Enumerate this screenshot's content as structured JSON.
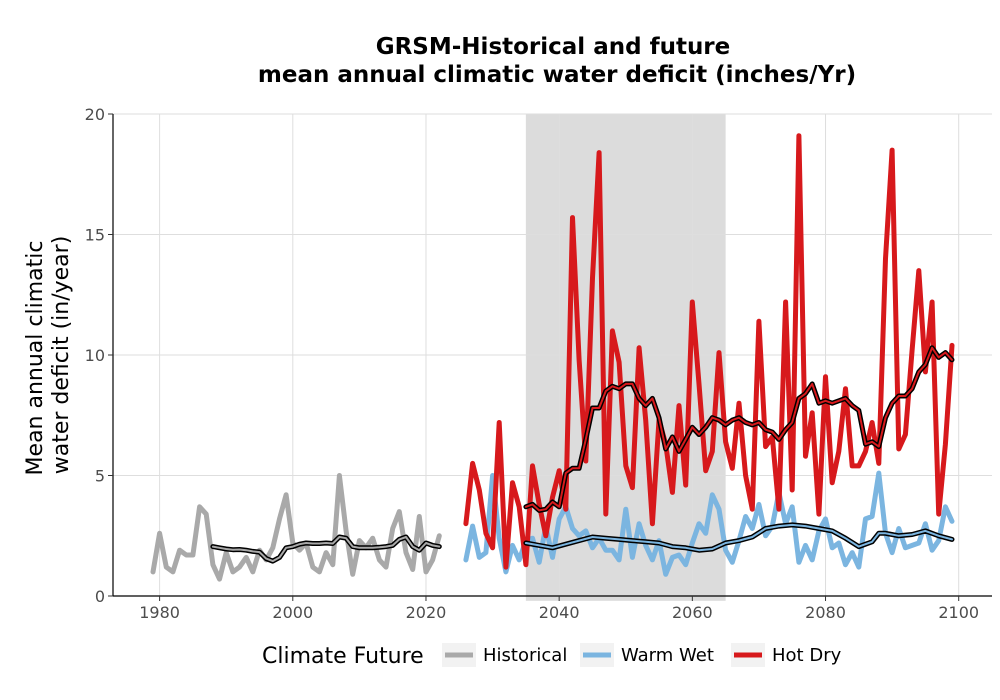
{
  "chart_data": {
    "type": "line",
    "title": [
      "GRSM-Historical and future",
      "mean annual climatic water deficit (inches/Yr)"
    ],
    "ylabel": [
      "Mean annual climatic",
      "water deficit (in/year)"
    ],
    "xlim": [
      1973,
      2105
    ],
    "ylim": [
      0,
      20
    ],
    "xticks": [
      1980,
      2000,
      2020,
      2040,
      2060,
      2080,
      2100
    ],
    "yticks": [
      0,
      5,
      10,
      15,
      20
    ],
    "grid": true,
    "shaded_period": [
      2035,
      2065
    ],
    "shaded_color": "#dcdcdc",
    "legend": {
      "title": "Climate Future",
      "position": "bottom",
      "entries": [
        "Historical",
        "Warm Wet",
        "Hot Dry"
      ]
    },
    "series": [
      {
        "name": "Historical",
        "color": "#a9a9a9",
        "x": [
          1979,
          1980,
          1981,
          1982,
          1983,
          1984,
          1985,
          1986,
          1987,
          1988,
          1989,
          1990,
          1991,
          1992,
          1993,
          1994,
          1995,
          1996,
          1997,
          1998,
          1999,
          2000,
          2001,
          2002,
          2003,
          2004,
          2005,
          2006,
          2007,
          2008,
          2009,
          2010,
          2011,
          2012,
          2013,
          2014,
          2015,
          2016,
          2017,
          2018,
          2019,
          2020,
          2021,
          2022
        ],
        "y": [
          1.0,
          2.6,
          1.2,
          1.0,
          1.9,
          1.7,
          1.7,
          3.7,
          3.4,
          1.3,
          0.7,
          1.8,
          1.0,
          1.2,
          1.6,
          1.0,
          1.9,
          1.5,
          2.0,
          3.2,
          4.2,
          2.2,
          1.9,
          2.2,
          1.2,
          1.0,
          1.8,
          1.3,
          5.0,
          2.7,
          0.9,
          2.3,
          2.0,
          2.4,
          1.5,
          1.2,
          2.8,
          3.5,
          1.8,
          1.1,
          3.3,
          1.0,
          1.5,
          2.5
        ]
      },
      {
        "name": "Warm Wet",
        "color": "#7bb5e0",
        "x": [
          2026,
          2027,
          2028,
          2029,
          2030,
          2031,
          2032,
          2033,
          2034,
          2035,
          2036,
          2037,
          2038,
          2039,
          2040,
          2041,
          2042,
          2043,
          2044,
          2045,
          2046,
          2047,
          2048,
          2049,
          2050,
          2051,
          2052,
          2053,
          2054,
          2055,
          2056,
          2057,
          2058,
          2059,
          2060,
          2061,
          2062,
          2063,
          2064,
          2065,
          2066,
          2067,
          2068,
          2069,
          2070,
          2071,
          2072,
          2073,
          2074,
          2075,
          2076,
          2077,
          2078,
          2079,
          2080,
          2081,
          2082,
          2083,
          2084,
          2085,
          2086,
          2087,
          2088,
          2089,
          2090,
          2091,
          2092,
          2093,
          2094,
          2095,
          2096,
          2097,
          2098,
          2099
        ],
        "y": [
          1.5,
          2.9,
          1.6,
          1.8,
          5.0,
          2.4,
          1.0,
          2.1,
          1.5,
          2.3,
          2.4,
          1.4,
          2.9,
          1.6,
          3.2,
          3.7,
          2.8,
          2.5,
          2.7,
          2.0,
          2.4,
          1.9,
          1.9,
          1.5,
          3.6,
          1.6,
          3.0,
          2.1,
          1.5,
          2.3,
          0.9,
          1.6,
          1.7,
          1.3,
          2.2,
          3.0,
          2.6,
          4.2,
          3.6,
          1.9,
          1.4,
          2.3,
          3.3,
          2.8,
          3.8,
          2.5,
          2.9,
          4.3,
          3.0,
          3.7,
          1.4,
          2.1,
          1.5,
          2.7,
          3.2,
          2.0,
          2.2,
          1.3,
          1.8,
          1.2,
          3.2,
          3.3,
          5.1,
          2.6,
          1.8,
          2.8,
          2.0,
          2.1,
          2.2,
          3.0,
          1.9,
          2.3,
          3.7,
          3.1
        ]
      },
      {
        "name": "Hot Dry",
        "color": "#d7191c",
        "x": [
          2026,
          2027,
          2028,
          2029,
          2030,
          2031,
          2032,
          2033,
          2034,
          2035,
          2036,
          2037,
          2038,
          2039,
          2040,
          2041,
          2042,
          2043,
          2044,
          2045,
          2046,
          2047,
          2048,
          2049,
          2050,
          2051,
          2052,
          2053,
          2054,
          2055,
          2056,
          2057,
          2058,
          2059,
          2060,
          2061,
          2062,
          2063,
          2064,
          2065,
          2066,
          2067,
          2068,
          2069,
          2070,
          2071,
          2072,
          2073,
          2074,
          2075,
          2076,
          2077,
          2078,
          2079,
          2080,
          2081,
          2082,
          2083,
          2084,
          2085,
          2086,
          2087,
          2088,
          2089,
          2090,
          2091,
          2092,
          2093,
          2094,
          2095,
          2096,
          2097,
          2098,
          2099
        ],
        "y": [
          3.0,
          5.5,
          4.4,
          2.6,
          2.0,
          7.2,
          1.2,
          4.7,
          3.7,
          1.3,
          5.4,
          3.8,
          2.5,
          4.1,
          5.2,
          3.6,
          15.7,
          9.8,
          5.6,
          13.2,
          18.4,
          3.4,
          11.0,
          9.7,
          5.4,
          4.5,
          10.3,
          7.3,
          3.0,
          7.3,
          6.3,
          4.3,
          7.9,
          4.6,
          12.2,
          8.8,
          5.2,
          6.0,
          10.1,
          6.4,
          5.3,
          8.0,
          5.0,
          3.6,
          11.4,
          6.2,
          6.6,
          3.6,
          12.2,
          4.4,
          19.1,
          5.8,
          7.6,
          3.4,
          9.1,
          4.7,
          6.0,
          8.6,
          5.4,
          5.4,
          6.0,
          7.2,
          5.5,
          14.0,
          18.5,
          6.1,
          6.7,
          10.2,
          13.5,
          9.3,
          12.2,
          3.4,
          6.3,
          10.4
        ]
      }
    ],
    "smoothed_color": "#000000",
    "smoothed": [
      {
        "name": "Historical",
        "x": [
          1988,
          1989,
          1990,
          1991,
          1992,
          1993,
          1994,
          1995,
          1996,
          1997,
          1998,
          1999,
          2000,
          2001,
          2002,
          2003,
          2004,
          2005,
          2006,
          2007,
          2008,
          2009,
          2010,
          2011,
          2012,
          2013,
          2014,
          2015,
          2016,
          2017,
          2018,
          2019,
          2020,
          2021,
          2022
        ],
        "y": [
          2.05,
          2.0,
          1.95,
          1.92,
          1.93,
          1.9,
          1.85,
          1.82,
          1.55,
          1.45,
          1.6,
          2.0,
          2.05,
          2.15,
          2.2,
          2.18,
          2.18,
          2.2,
          2.18,
          2.45,
          2.4,
          2.05,
          2.0,
          2.0,
          2.0,
          2.02,
          2.05,
          2.1,
          2.35,
          2.45,
          2.05,
          1.9,
          2.2,
          2.1,
          2.05
        ]
      },
      {
        "name": "Warm Wet",
        "x": [
          2035,
          2037,
          2039,
          2041,
          2043,
          2045,
          2047,
          2049,
          2051,
          2053,
          2055,
          2057,
          2059,
          2061,
          2063,
          2065,
          2067,
          2069,
          2071,
          2073,
          2075,
          2077,
          2079,
          2081,
          2083,
          2085,
          2087,
          2088,
          2089,
          2091,
          2093,
          2095,
          2097,
          2099
        ],
        "y": [
          2.2,
          2.1,
          2.0,
          2.15,
          2.3,
          2.45,
          2.4,
          2.35,
          2.3,
          2.25,
          2.2,
          2.05,
          2.0,
          1.9,
          1.95,
          2.2,
          2.3,
          2.45,
          2.8,
          2.9,
          2.95,
          2.9,
          2.8,
          2.7,
          2.4,
          2.05,
          2.25,
          2.6,
          2.6,
          2.5,
          2.55,
          2.7,
          2.5,
          2.35
        ]
      },
      {
        "name": "Hot Dry",
        "x": [
          2035,
          2036,
          2037,
          2038,
          2039,
          2040,
          2041,
          2042,
          2043,
          2044,
          2045,
          2046,
          2047,
          2048,
          2049,
          2050,
          2051,
          2052,
          2053,
          2054,
          2055,
          2056,
          2057,
          2058,
          2059,
          2060,
          2061,
          2062,
          2063,
          2064,
          2065,
          2066,
          2067,
          2068,
          2069,
          2070,
          2071,
          2072,
          2073,
          2074,
          2075,
          2076,
          2077,
          2078,
          2079,
          2080,
          2081,
          2082,
          2083,
          2084,
          2085,
          2086,
          2087,
          2088,
          2089,
          2090,
          2091,
          2092,
          2093,
          2094,
          2095,
          2096,
          2097,
          2098,
          2099
        ],
        "y": [
          3.7,
          3.8,
          3.55,
          3.6,
          3.9,
          3.7,
          5.1,
          5.3,
          5.3,
          6.5,
          7.8,
          7.8,
          8.5,
          8.7,
          8.6,
          8.8,
          8.8,
          8.2,
          7.9,
          8.2,
          7.4,
          6.1,
          6.6,
          6.0,
          6.5,
          7.0,
          6.7,
          7.0,
          7.4,
          7.3,
          7.1,
          7.3,
          7.4,
          7.2,
          7.1,
          7.2,
          6.9,
          6.8,
          6.5,
          6.9,
          7.2,
          8.2,
          8.4,
          8.8,
          8.0,
          8.1,
          8.0,
          8.1,
          8.2,
          7.9,
          7.7,
          6.3,
          6.4,
          6.2,
          7.4,
          8.0,
          8.3,
          8.3,
          8.6,
          9.3,
          9.6,
          10.3,
          9.9,
          10.1,
          9.8
        ]
      }
    ]
  }
}
